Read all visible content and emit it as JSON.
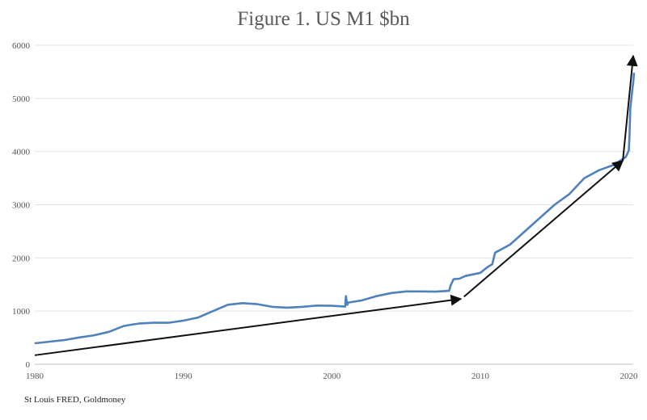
{
  "chart_data": {
    "type": "line",
    "title": "Figure 1. US M1 $bn",
    "xlabel": "",
    "ylabel": "",
    "source": "St Louis FRED, Goldmoney",
    "xlim": [
      1980,
      2020.3
    ],
    "ylim": [
      0,
      6000
    ],
    "xticks": [
      1980,
      1990,
      2000,
      2010,
      2020
    ],
    "yticks": [
      0,
      1000,
      2000,
      3000,
      4000,
      5000,
      6000
    ],
    "grid": "horizontal",
    "series": [
      {
        "color": "#4f81bd",
        "x": [
          1980,
          1981,
          1982,
          1983,
          1984,
          1985,
          1986,
          1986.5,
          1987,
          1988,
          1989,
          1990,
          1991,
          1992,
          1993,
          1994,
          1995,
          1996,
          1997,
          1998,
          1999,
          2000,
          2000.9,
          2000.95,
          2001.05,
          2001.1,
          2002,
          2003,
          2004,
          2005,
          2006,
          2007,
          2007.9,
          2008.0,
          2008.2,
          2008.6,
          2009,
          2010,
          2010.5,
          2010.8,
          2011,
          2012,
          2013,
          2014,
          2015,
          2016,
          2017,
          2018,
          2019,
          2019.8,
          2020.0,
          2020.05,
          2020.1,
          2020.25,
          2020.3,
          2020.35
        ],
        "y": [
          395,
          425,
          455,
          505,
          545,
          610,
          720,
          745,
          765,
          780,
          780,
          820,
          880,
          1000,
          1120,
          1150,
          1130,
          1080,
          1065,
          1080,
          1105,
          1100,
          1085,
          1280,
          1120,
          1160,
          1200,
          1280,
          1340,
          1370,
          1370,
          1365,
          1380,
          1480,
          1600,
          1610,
          1660,
          1720,
          1830,
          1880,
          2100,
          2250,
          2500,
          2750,
          3000,
          3200,
          3500,
          3650,
          3750,
          3900,
          4020,
          4300,
          4800,
          5200,
          5300,
          5480
        ]
      }
    ],
    "annotations": [
      {
        "type": "arrow",
        "from": [
          1980,
          170
        ],
        "to": [
          2008.7,
          1230
        ]
      },
      {
        "type": "arrow",
        "from": [
          2008.9,
          1270
        ],
        "to": [
          2019.6,
          3830
        ]
      },
      {
        "type": "arrow",
        "from": [
          2019.6,
          3830
        ],
        "to": [
          2020.3,
          5800
        ]
      }
    ]
  }
}
